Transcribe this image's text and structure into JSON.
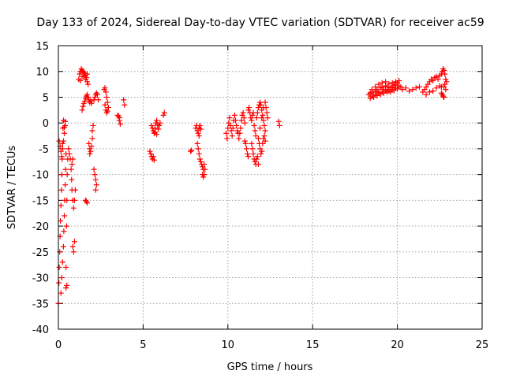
{
  "chart_data": {
    "type": "scatter",
    "title": "Day 133 of 2024, Sidereal Day-to-day VTEC variation (SDTVAR) for receiver ac59",
    "xlabel": "GPS time / hours",
    "ylabel": "SDTVAR / TECUs",
    "xlim": [
      0,
      25
    ],
    "ylim": [
      -40,
      15
    ],
    "xticks": [
      0,
      5,
      10,
      15,
      20,
      25
    ],
    "yticks": [
      -40,
      -35,
      -30,
      -25,
      -20,
      -15,
      -10,
      -5,
      0,
      5,
      10,
      15
    ],
    "grid": true,
    "marker": "+",
    "color": "#ff0000",
    "series": [
      {
        "name": "ac59",
        "points": [
          [
            0.0,
            -35
          ],
          [
            0.03,
            -31
          ],
          [
            0.05,
            -28
          ],
          [
            0.08,
            -25
          ],
          [
            0.1,
            -22
          ],
          [
            0.12,
            -19
          ],
          [
            0.15,
            -16
          ],
          [
            0.18,
            -13
          ],
          [
            0.2,
            -10
          ],
          [
            0.22,
            -7
          ],
          [
            0.25,
            -4
          ],
          [
            0.27,
            -1
          ],
          [
            0.3,
            0.5
          ],
          [
            0.05,
            -3.5
          ],
          [
            0.1,
            -4.5
          ],
          [
            0.15,
            -5.5
          ],
          [
            0.2,
            -6.5
          ],
          [
            0.25,
            -5
          ],
          [
            0.3,
            -3.5
          ],
          [
            0.35,
            -2
          ],
          [
            0.4,
            -0.5
          ],
          [
            0.4,
            0.3
          ],
          [
            0.35,
            -0.8
          ],
          [
            0.15,
            -33
          ],
          [
            0.2,
            -30
          ],
          [
            0.25,
            -27
          ],
          [
            0.3,
            -24
          ],
          [
            0.32,
            -21
          ],
          [
            0.35,
            -18
          ],
          [
            0.37,
            -15
          ],
          [
            0.4,
            -12
          ],
          [
            0.42,
            -9
          ],
          [
            0.45,
            -6
          ],
          [
            0.45,
            -32
          ],
          [
            0.5,
            -31.5
          ],
          [
            0.45,
            -28
          ],
          [
            0.48,
            -20
          ],
          [
            0.5,
            -15
          ],
          [
            0.52,
            -10
          ],
          [
            0.55,
            -7
          ],
          [
            0.6,
            -5
          ],
          [
            0.65,
            -6
          ],
          [
            0.7,
            -7
          ],
          [
            0.75,
            -9
          ],
          [
            0.78,
            -11
          ],
          [
            0.8,
            -13
          ],
          [
            0.85,
            -15
          ],
          [
            0.9,
            -16.5
          ],
          [
            0.95,
            -15
          ],
          [
            1.0,
            -13
          ],
          [
            0.85,
            -24
          ],
          [
            0.9,
            -25
          ],
          [
            0.95,
            -23
          ],
          [
            0.8,
            -8
          ],
          [
            0.85,
            -7
          ],
          [
            1.2,
            8.5
          ],
          [
            1.25,
            9.5
          ],
          [
            1.3,
            10
          ],
          [
            1.35,
            10.5
          ],
          [
            1.4,
            10.2
          ],
          [
            1.45,
            10
          ],
          [
            1.5,
            9.8
          ],
          [
            1.55,
            9.5
          ],
          [
            1.6,
            9.2
          ],
          [
            1.65,
            8.8
          ],
          [
            1.7,
            8
          ],
          [
            1.75,
            7.5
          ],
          [
            1.3,
            8.2
          ],
          [
            1.4,
            9
          ],
          [
            1.5,
            9
          ],
          [
            1.6,
            8.5
          ],
          [
            1.7,
            9.5
          ],
          [
            1.4,
            2.5
          ],
          [
            1.45,
            3.2
          ],
          [
            1.5,
            3.8
          ],
          [
            1.55,
            4.2
          ],
          [
            1.6,
            4.8
          ],
          [
            1.65,
            5.2
          ],
          [
            1.7,
            5.5
          ],
          [
            1.75,
            5
          ],
          [
            1.8,
            4.5
          ],
          [
            1.85,
            4
          ],
          [
            1.9,
            4.3
          ],
          [
            1.95,
            3.8
          ],
          [
            1.6,
            -15
          ],
          [
            1.65,
            -15.2
          ],
          [
            1.7,
            -15.5
          ],
          [
            1.8,
            -4
          ],
          [
            1.85,
            -5
          ],
          [
            1.9,
            -5.5
          ],
          [
            1.95,
            -4.5
          ],
          [
            2.0,
            -3
          ],
          [
            2.0,
            -1.5
          ],
          [
            2.05,
            -0.5
          ],
          [
            1.85,
            -6
          ],
          [
            2.1,
            -9
          ],
          [
            2.15,
            -10
          ],
          [
            2.2,
            -11
          ],
          [
            2.25,
            -12
          ],
          [
            2.2,
            -13
          ],
          [
            2.1,
            4.5
          ],
          [
            2.15,
            5
          ],
          [
            2.2,
            5.5
          ],
          [
            2.25,
            5.8
          ],
          [
            2.3,
            5.5
          ],
          [
            2.35,
            4.5
          ],
          [
            2.7,
            6.5
          ],
          [
            2.75,
            6.8
          ],
          [
            2.8,
            6
          ],
          [
            2.85,
            5
          ],
          [
            2.9,
            4
          ],
          [
            2.95,
            3
          ],
          [
            2.8,
            2.5
          ],
          [
            2.85,
            2
          ],
          [
            2.9,
            2.3
          ],
          [
            2.75,
            3.5
          ],
          [
            3.5,
            1.5
          ],
          [
            3.55,
            1.3
          ],
          [
            3.6,
            0.5
          ],
          [
            3.65,
            -0.2
          ],
          [
            3.6,
            1
          ],
          [
            3.85,
            4.5
          ],
          [
            3.9,
            3.5
          ],
          [
            5.4,
            -5.5
          ],
          [
            5.45,
            -6
          ],
          [
            5.5,
            -6.5
          ],
          [
            5.55,
            -7
          ],
          [
            5.6,
            -6.5
          ],
          [
            5.65,
            -7.2
          ],
          [
            5.5,
            -0.5
          ],
          [
            5.55,
            -1
          ],
          [
            5.6,
            -1.5
          ],
          [
            5.65,
            -2
          ],
          [
            5.7,
            -1
          ],
          [
            5.75,
            0
          ],
          [
            5.8,
            0.5
          ],
          [
            5.85,
            -0.3
          ],
          [
            5.9,
            -1.2
          ],
          [
            5.95,
            -0.5
          ],
          [
            6.0,
            0
          ],
          [
            5.7,
            -1.8
          ],
          [
            5.8,
            -2.2
          ],
          [
            6.2,
            1.5
          ],
          [
            6.25,
            2
          ],
          [
            7.8,
            -5.5
          ],
          [
            7.85,
            -5.3
          ],
          [
            8.1,
            -1
          ],
          [
            8.15,
            -0.5
          ],
          [
            8.2,
            -1.5
          ],
          [
            8.25,
            -2
          ],
          [
            8.3,
            -1
          ],
          [
            8.35,
            -0.5
          ],
          [
            8.4,
            -1.2
          ],
          [
            8.3,
            -2.5
          ],
          [
            8.2,
            -4
          ],
          [
            8.25,
            -5
          ],
          [
            8.3,
            -6
          ],
          [
            8.35,
            -7
          ],
          [
            8.4,
            -7.5
          ],
          [
            8.45,
            -8
          ],
          [
            8.5,
            -8.5
          ],
          [
            8.55,
            -9
          ],
          [
            8.6,
            -8
          ],
          [
            8.65,
            -9
          ],
          [
            8.5,
            -10
          ],
          [
            8.55,
            -10.5
          ],
          [
            8.6,
            -10
          ],
          [
            9.9,
            -2
          ],
          [
            9.95,
            -3
          ],
          [
            10.0,
            -1
          ],
          [
            10.05,
            0
          ],
          [
            10.1,
            1
          ],
          [
            10.15,
            -0.5
          ],
          [
            10.2,
            -1.5
          ],
          [
            10.25,
            -2.5
          ],
          [
            10.3,
            -1
          ],
          [
            10.35,
            0.5
          ],
          [
            10.4,
            1.5
          ],
          [
            10.45,
            0.5
          ],
          [
            10.5,
            -0.5
          ],
          [
            10.55,
            -1.5
          ],
          [
            10.6,
            -2
          ],
          [
            10.65,
            -3
          ],
          [
            10.7,
            -2
          ],
          [
            10.75,
            -1
          ],
          [
            10.8,
            0.5
          ],
          [
            10.85,
            1.5
          ],
          [
            10.9,
            2
          ],
          [
            10.95,
            1
          ],
          [
            11.0,
            0
          ],
          [
            11.0,
            -3.5
          ],
          [
            11.05,
            -4
          ],
          [
            11.1,
            -5
          ],
          [
            11.15,
            -6
          ],
          [
            11.2,
            -6.5
          ],
          [
            11.2,
            2.5
          ],
          [
            11.25,
            3
          ],
          [
            11.3,
            2
          ],
          [
            11.35,
            1
          ],
          [
            11.4,
            0.5
          ],
          [
            11.45,
            1.5
          ],
          [
            11.5,
            2
          ],
          [
            11.55,
            -0.5
          ],
          [
            11.6,
            -1.5
          ],
          [
            11.65,
            -2.5
          ],
          [
            11.4,
            -4
          ],
          [
            11.45,
            -5
          ],
          [
            11.5,
            -6
          ],
          [
            11.55,
            -7
          ],
          [
            11.6,
            -7.5
          ],
          [
            11.65,
            -8
          ],
          [
            11.7,
            -7
          ],
          [
            11.75,
            -6.5
          ],
          [
            11.8,
            -8
          ],
          [
            11.7,
            1
          ],
          [
            11.75,
            2
          ],
          [
            11.8,
            3
          ],
          [
            11.85,
            3.5
          ],
          [
            11.9,
            4
          ],
          [
            11.95,
            3.5
          ],
          [
            12.0,
            2.5
          ],
          [
            12.05,
            1.5
          ],
          [
            12.1,
            0.5
          ],
          [
            12.15,
            -0.5
          ],
          [
            12.2,
            -1.5
          ],
          [
            11.8,
            -3
          ],
          [
            11.85,
            -4
          ],
          [
            11.9,
            -5
          ],
          [
            11.95,
            -6
          ],
          [
            12.0,
            -5.5
          ],
          [
            12.05,
            -4
          ],
          [
            12.1,
            -3
          ],
          [
            12.15,
            -2.5
          ],
          [
            12.2,
            -3.5
          ],
          [
            11.9,
            -1
          ],
          [
            12.0,
            1
          ],
          [
            12.1,
            3
          ],
          [
            12.2,
            4
          ],
          [
            12.25,
            3
          ],
          [
            12.3,
            2
          ],
          [
            12.35,
            1
          ],
          [
            13.0,
            0.3
          ],
          [
            13.05,
            -0.5
          ],
          [
            18.3,
            5.5
          ],
          [
            18.4,
            5.8
          ],
          [
            18.5,
            6
          ],
          [
            18.6,
            5.5
          ],
          [
            18.7,
            6.2
          ],
          [
            18.8,
            6.5
          ],
          [
            18.9,
            6
          ],
          [
            19.0,
            6.8
          ],
          [
            19.1,
            7
          ],
          [
            19.2,
            6.5
          ],
          [
            19.3,
            7.2
          ],
          [
            19.4,
            7
          ],
          [
            19.5,
            6.5
          ],
          [
            19.6,
            6.8
          ],
          [
            19.7,
            7
          ],
          [
            19.8,
            7.3
          ],
          [
            19.9,
            7.5
          ],
          [
            20.0,
            7.8
          ],
          [
            20.1,
            7.2
          ],
          [
            20.2,
            7
          ],
          [
            18.4,
            4.8
          ],
          [
            18.5,
            5.2
          ],
          [
            18.6,
            5
          ],
          [
            18.7,
            5.5
          ],
          [
            18.8,
            5.3
          ],
          [
            18.9,
            5.8
          ],
          [
            19.0,
            5.5
          ],
          [
            19.1,
            6
          ],
          [
            19.2,
            5.8
          ],
          [
            19.3,
            6.3
          ],
          [
            19.4,
            6
          ],
          [
            19.5,
            6.2
          ],
          [
            19.6,
            6
          ],
          [
            19.7,
            6.5
          ],
          [
            19.8,
            6.3
          ],
          [
            19.9,
            6.8
          ],
          [
            20.0,
            6.6
          ],
          [
            18.5,
            6.5
          ],
          [
            18.7,
            7
          ],
          [
            18.9,
            7.5
          ],
          [
            19.1,
            7.8
          ],
          [
            19.3,
            8
          ],
          [
            19.5,
            7.6
          ],
          [
            19.7,
            7.8
          ],
          [
            19.9,
            8
          ],
          [
            20.1,
            8.2
          ],
          [
            20.3,
            6.5
          ],
          [
            20.5,
            6.8
          ],
          [
            20.7,
            6.2
          ],
          [
            20.9,
            6.5
          ],
          [
            21.1,
            6.8
          ],
          [
            21.3,
            7
          ],
          [
            21.5,
            6
          ],
          [
            21.6,
            6.5
          ],
          [
            21.7,
            7
          ],
          [
            21.8,
            7.5
          ],
          [
            21.9,
            8
          ],
          [
            22.0,
            8.5
          ],
          [
            22.1,
            8.2
          ],
          [
            22.2,
            8.8
          ],
          [
            22.3,
            9
          ],
          [
            22.4,
            8.5
          ],
          [
            22.5,
            9.2
          ],
          [
            21.7,
            5.5
          ],
          [
            21.9,
            6
          ],
          [
            22.1,
            6.2
          ],
          [
            22.3,
            6.8
          ],
          [
            22.5,
            7.2
          ],
          [
            22.6,
            7
          ],
          [
            22.6,
            9.5
          ],
          [
            22.65,
            10
          ],
          [
            22.7,
            10.5
          ],
          [
            22.75,
            10.2
          ],
          [
            22.8,
            9.5
          ],
          [
            22.85,
            8.5
          ],
          [
            22.8,
            7.5
          ],
          [
            22.85,
            6.5
          ],
          [
            22.9,
            8
          ],
          [
            22.75,
            7
          ],
          [
            22.6,
            5.8
          ],
          [
            22.65,
            5.5
          ],
          [
            22.7,
            5.2
          ],
          [
            22.75,
            5
          ]
        ]
      }
    ]
  }
}
